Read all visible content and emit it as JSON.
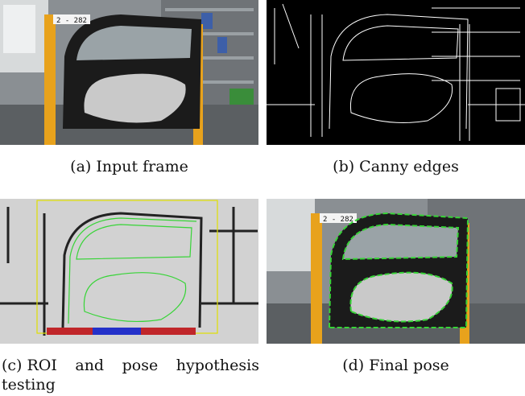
{
  "figure": {
    "panels": [
      {
        "tag": "(a)",
        "caption": "Input frame",
        "image": "photo of a car door mounted in a yellow rack in a warehouse, label tag on top"
      },
      {
        "tag": "(b)",
        "caption": "Canny edges",
        "image": "black image with white edge map"
      },
      {
        "tag": "(c)",
        "caption": "ROI and pose hypothesis testing",
        "image": "gray edge-distance map with green contour hypothesis, yellow ROI box and red/blue score bar"
      },
      {
        "tag": "(d)",
        "caption": "Final pose",
        "image": "input frame overlaid with green dashed fitted door contour"
      }
    ],
    "door_label": "2 - 282",
    "colors": {
      "rack_yellow": "#e8a21c",
      "door_black": "#1b1b1b",
      "panel_silver": "#c9c9c9",
      "edge_white": "#ffffff",
      "roi_yellow": "#e0e000",
      "hypothesis_green": "#37d437",
      "score_red": "#c0262a",
      "score_blue": "#2431c9"
    }
  }
}
